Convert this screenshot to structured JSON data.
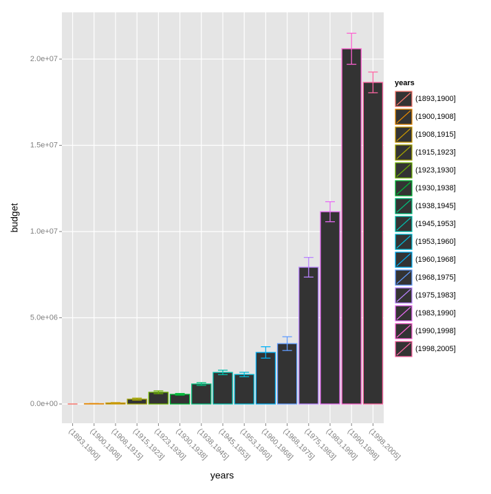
{
  "chart_data": {
    "type": "bar",
    "x_label": "years",
    "y_label": "budget",
    "legend_title": "years",
    "categories": [
      "(1893,1900]",
      "(1900,1908]",
      "(1908,1915]",
      "(1915,1923]",
      "(1923,1930]",
      "(1930,1938]",
      "(1938,1945]",
      "(1945,1953]",
      "(1953,1960]",
      "(1960,1968]",
      "(1968,1975]",
      "(1975,1983]",
      "(1983,1990]",
      "(1990,1998]",
      "(1998,2005]"
    ],
    "values": [
      0,
      20000,
      60000,
      280000,
      680000,
      560000,
      1160000,
      1830000,
      1710000,
      2990000,
      3500000,
      7930000,
      11150000,
      20600000,
      18650000
    ],
    "errors": [
      0,
      5000,
      20000,
      60000,
      80000,
      50000,
      80000,
      130000,
      130000,
      330000,
      400000,
      570000,
      580000,
      900000,
      600000
    ],
    "colors": [
      "#F8766D",
      "#E58700",
      "#C99800",
      "#A3A500",
      "#6BB100",
      "#00BA38",
      "#00BF7D",
      "#00C0AF",
      "#00BCD8",
      "#00B0F6",
      "#619CFF",
      "#B983FF",
      "#E76BF3",
      "#FD61D1",
      "#FF67A4"
    ],
    "bar_fill": "#333333",
    "ylim": [
      -1116000,
      22710000
    ],
    "yticks": [
      {
        "value": 0,
        "label": "0.0e+00"
      },
      {
        "value": 5000000,
        "label": "5.0e+06"
      },
      {
        "value": 10000000,
        "label": "1.0e+07"
      },
      {
        "value": 15000000,
        "label": "1.5e+07"
      },
      {
        "value": 20000000,
        "label": "2.0e+07"
      }
    ],
    "grid": true
  }
}
